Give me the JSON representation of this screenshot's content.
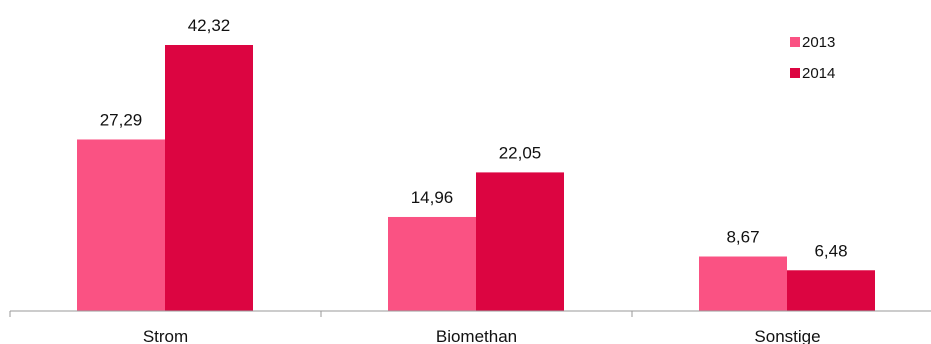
{
  "chart_data": {
    "type": "bar",
    "categories": [
      "Strom",
      "Biomethan",
      "Sonstige"
    ],
    "series": [
      {
        "name": "2013",
        "color": "#fa5283",
        "values": [
          27.29,
          14.96,
          8.67
        ],
        "labels": [
          "27,29",
          "14,96",
          "8,67"
        ]
      },
      {
        "name": "2014",
        "color": "#dc0541",
        "values": [
          42.32,
          22.05,
          6.48
        ],
        "labels": [
          "42,32",
          "22,05",
          "6,48"
        ]
      }
    ],
    "title": "",
    "xlabel": "",
    "ylabel": "",
    "ylim": [
      0,
      42.32
    ],
    "grid": false,
    "legend_position": "top-right"
  }
}
